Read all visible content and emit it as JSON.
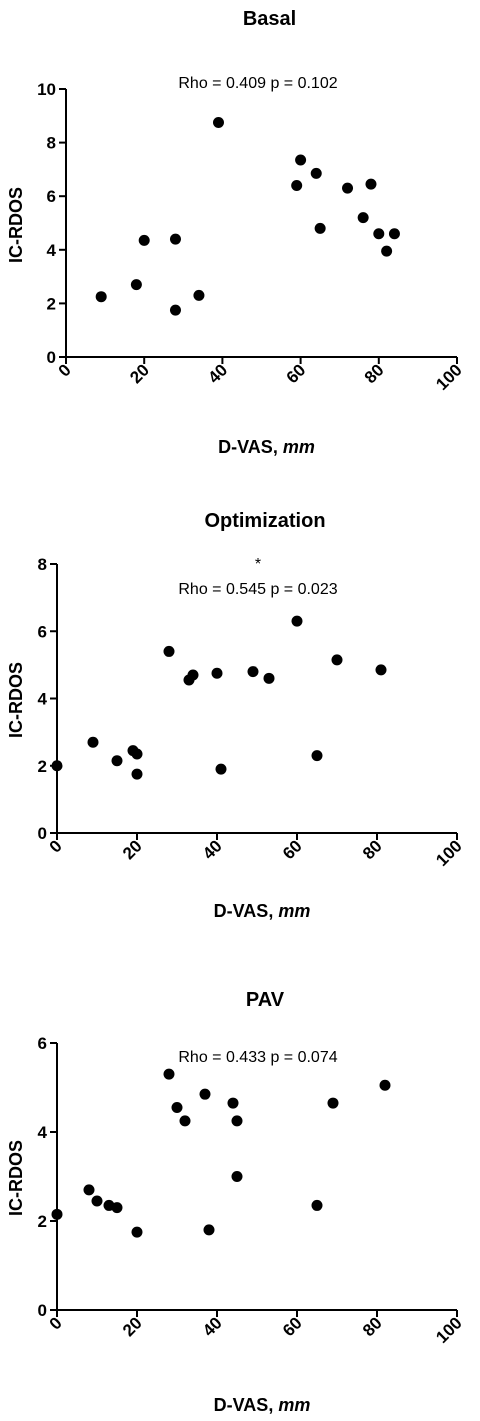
{
  "chart_data": [
    {
      "type": "scatter",
      "title": "Basal",
      "xlabel": "D-VAS",
      "xlabel_unit": "mm",
      "ylabel": "IC-RDOS",
      "annotation": "Rho = 0.409 p = 0.102",
      "significance_mark": "",
      "xlim": [
        0,
        100
      ],
      "ylim": [
        0,
        10
      ],
      "xticks": [
        0,
        20,
        40,
        60,
        80,
        100
      ],
      "yticks": [
        0,
        2,
        4,
        6,
        8,
        10
      ],
      "grid": false,
      "marker_color": "#000000",
      "points": [
        [
          9,
          2.25
        ],
        [
          18,
          2.7
        ],
        [
          20,
          4.35
        ],
        [
          28,
          4.4
        ],
        [
          28,
          1.75
        ],
        [
          34,
          2.3
        ],
        [
          39,
          8.75
        ],
        [
          59,
          6.4
        ],
        [
          60,
          7.35
        ],
        [
          64,
          6.85
        ],
        [
          65,
          4.8
        ],
        [
          72,
          6.3
        ],
        [
          76,
          5.2
        ],
        [
          78,
          6.45
        ],
        [
          80,
          4.6
        ],
        [
          82,
          3.95
        ],
        [
          84,
          4.6
        ]
      ]
    },
    {
      "type": "scatter",
      "title": "Optimization",
      "xlabel": "D-VAS",
      "xlabel_unit": "mm",
      "ylabel": "IC-RDOS",
      "annotation": "Rho = 0.545 p = 0.023",
      "significance_mark": "*",
      "xlim": [
        0,
        100
      ],
      "ylim": [
        0,
        8
      ],
      "xticks": [
        0,
        20,
        40,
        60,
        80,
        100
      ],
      "yticks": [
        0,
        2,
        4,
        6,
        8
      ],
      "grid": false,
      "marker_color": "#000000",
      "points": [
        [
          0,
          2.0
        ],
        [
          9,
          2.7
        ],
        [
          15,
          2.15
        ],
        [
          19,
          2.45
        ],
        [
          20,
          2.35
        ],
        [
          20,
          1.75
        ],
        [
          28,
          5.4
        ],
        [
          33,
          4.55
        ],
        [
          34,
          4.7
        ],
        [
          40,
          4.75
        ],
        [
          41,
          1.9
        ],
        [
          49,
          4.8
        ],
        [
          53,
          4.6
        ],
        [
          60,
          6.3
        ],
        [
          65,
          2.3
        ],
        [
          70,
          5.15
        ],
        [
          81,
          4.85
        ]
      ]
    },
    {
      "type": "scatter",
      "title": "PAV",
      "xlabel": "D-VAS",
      "xlabel_unit": "mm",
      "ylabel": "IC-RDOS",
      "annotation": "Rho = 0.433 p = 0.074",
      "significance_mark": "",
      "xlim": [
        0,
        100
      ],
      "ylim": [
        0,
        6
      ],
      "xticks": [
        0,
        20,
        40,
        60,
        80,
        100
      ],
      "yticks": [
        0,
        2,
        4,
        6
      ],
      "grid": false,
      "marker_color": "#000000",
      "points": [
        [
          0,
          2.15
        ],
        [
          8,
          2.7
        ],
        [
          10,
          2.45
        ],
        [
          13,
          2.35
        ],
        [
          15,
          2.3
        ],
        [
          20,
          1.75
        ],
        [
          28,
          5.3
        ],
        [
          30,
          4.55
        ],
        [
          32,
          4.25
        ],
        [
          37,
          4.85
        ],
        [
          38,
          1.8
        ],
        [
          44,
          4.65
        ],
        [
          45,
          4.25
        ],
        [
          45,
          3.0
        ],
        [
          65,
          2.35
        ],
        [
          69,
          4.65
        ],
        [
          82,
          5.05
        ]
      ]
    }
  ]
}
